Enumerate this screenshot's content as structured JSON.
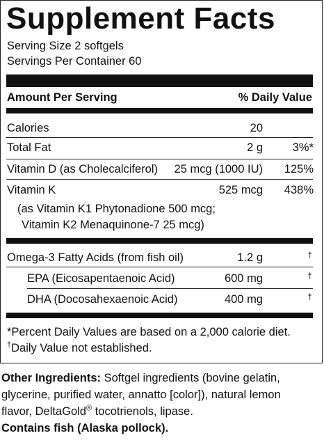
{
  "title": "Supplement Facts",
  "serving_size": "Serving Size 2 softgels",
  "servings_per_container": "Servings Per Container 60",
  "header": {
    "amount_per_serving": "Amount Per Serving",
    "daily_value": "% Daily Value"
  },
  "rows": {
    "calories": {
      "name": "Calories",
      "amount": "20",
      "dv": ""
    },
    "total_fat": {
      "name": "Total Fat",
      "amount": "2 g",
      "dv": "3%*"
    },
    "vitamin_d": {
      "name": "Vitamin D (as Cholecalciferol)",
      "amount": "25 mcg (1000 IU)",
      "dv": "125%"
    },
    "vitamin_k": {
      "name": "Vitamin K",
      "amount": "525 mcg",
      "dv": "438%",
      "detail_1": "(as Vitamin K1 Phytonadione 500 mcg;",
      "detail_2": "Vitamin K2 Menaquinone-7 25 mcg)"
    },
    "omega3": {
      "name": "Omega-3 Fatty Acids (from fish oil)",
      "amount": "1.2 g",
      "dv": "†"
    },
    "epa": {
      "name": "EPA (Eicosapentaenoic Acid)",
      "amount": "600 mg",
      "dv": "†"
    },
    "dha": {
      "name": "DHA (Docosahexaenoic Acid)",
      "amount": "400 mg",
      "dv": "†"
    }
  },
  "footnotes": {
    "percent_dv": "*Percent Daily Values are based on a 2,000 calorie diet.",
    "not_established_mark": "†",
    "not_established": "Daily Value not established."
  },
  "other_ingredients": {
    "label": "Other Ingredients:",
    "line1": " Softgel ingredients (bovine gelatin,",
    "line2": "glycerine, purified water, annatto [color]), natural lemon",
    "line3_pre": "flavor, DeltaGold",
    "registered": "®",
    "line3_post": " tocotrienols, lipase."
  },
  "allergen": "Contains fish (Alaska pollock)."
}
